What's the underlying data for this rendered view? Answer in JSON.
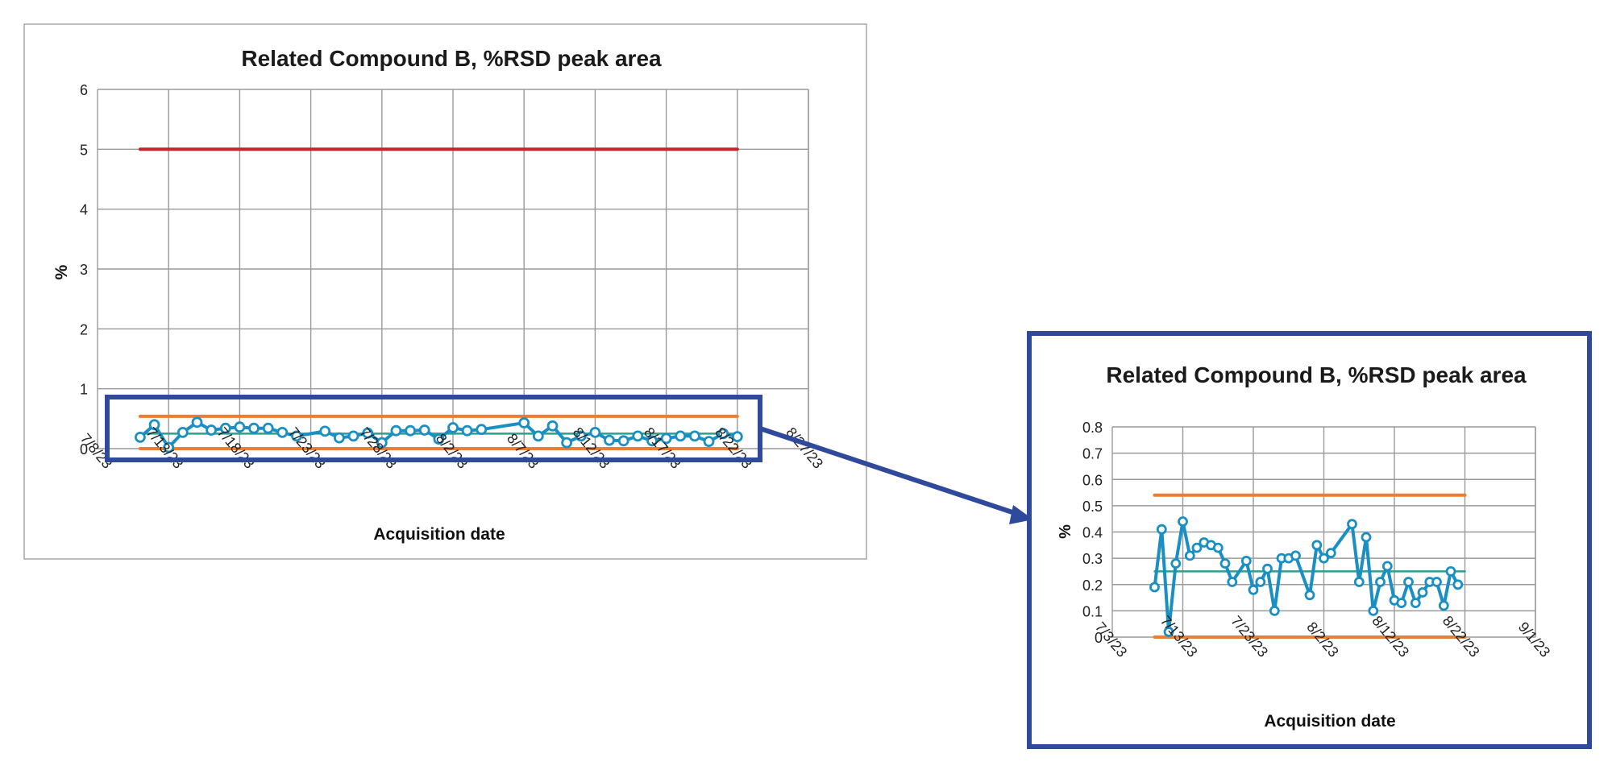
{
  "chart_data": [
    {
      "type": "line",
      "title": "Related Compound B, %RSD peak area",
      "xlabel": "Acquisition date",
      "ylabel": "%",
      "x_ticks": [
        "7/8/23",
        "7/13/23",
        "7/18/23",
        "7/23/23",
        "7/28/23",
        "8/2/23",
        "8/7/23",
        "8/12/23",
        "8/17/23",
        "8/22/23",
        "8/27/23"
      ],
      "xlim": [
        "7/8/23",
        "8/27/23"
      ],
      "ylim": [
        0,
        6
      ],
      "y_ticks": [
        "0",
        "1",
        "2",
        "3",
        "4",
        "5",
        "6"
      ],
      "grid": true,
      "series": [
        {
          "role": "limit",
          "color": "#c0272d",
          "x": [
            "7/11/23",
            "8/22/23"
          ],
          "y": [
            5,
            5
          ]
        },
        {
          "role": "upper control",
          "color": "#ed7d31",
          "x": [
            "7/11/23",
            "8/22/23"
          ],
          "y": [
            0.54,
            0.54
          ]
        },
        {
          "role": "lower control",
          "color": "#ed7d31",
          "x": [
            "7/11/23",
            "8/22/23"
          ],
          "y": [
            0,
            0
          ]
        },
        {
          "role": "mean",
          "color": "#2e9e8f",
          "x": [
            "7/11/23",
            "8/22/23"
          ],
          "y": [
            0.25,
            0.25
          ]
        },
        {
          "role": "data",
          "color": "#1a8fc4",
          "x": [
            "7/11/23",
            "7/12/23",
            "7/13/23",
            "7/14/23",
            "7/15/23",
            "7/16/23",
            "7/17/23",
            "7/18/23",
            "7/19/23",
            "7/20/23",
            "7/21/23",
            "7/22/23",
            "7/24/23",
            "7/25/23",
            "7/26/23",
            "7/27/23",
            "7/28/23",
            "7/29/23",
            "7/30/23",
            "7/31/23",
            "8/1/23",
            "8/2/23",
            "8/3/23",
            "8/4/23",
            "8/7/23",
            "8/8/23",
            "8/9/23",
            "8/10/23",
            "8/11/23",
            "8/12/23",
            "8/13/23",
            "8/14/23",
            "8/15/23",
            "8/16/23",
            "8/17/23",
            "8/18/23",
            "8/19/23",
            "8/20/23",
            "8/21/23",
            "8/22/23"
          ],
          "y": [
            0.19,
            0.4,
            0.02,
            0.27,
            0.44,
            0.31,
            0.34,
            0.36,
            0.34,
            0.34,
            0.27,
            0.21,
            0.29,
            0.18,
            0.21,
            0.26,
            0.1,
            0.3,
            0.3,
            0.31,
            0.16,
            0.35,
            0.3,
            0.32,
            0.43,
            0.21,
            0.38,
            0.1,
            0.21,
            0.27,
            0.14,
            0.13,
            0.21,
            0.13,
            0.17,
            0.21,
            0.21,
            0.12,
            0.25,
            0.2
          ]
        }
      ]
    },
    {
      "type": "line",
      "title": "Related Compound B, %RSD peak area",
      "xlabel": "Acquisition date",
      "ylabel": "%",
      "x_ticks": [
        "7/3/23",
        "7/13/23",
        "7/23/23",
        "8/2/23",
        "8/12/23",
        "8/22/23",
        "9/1/23"
      ],
      "xlim": [
        "7/3/23",
        "9/1/23"
      ],
      "ylim": [
        0,
        0.8
      ],
      "y_ticks": [
        "0",
        "0.1",
        "0.2",
        "0.3",
        "0.4",
        "0.5",
        "0.6",
        "0.7",
        "0.8"
      ],
      "grid": true,
      "series": [
        {
          "role": "upper control",
          "color": "#ed7d31",
          "x": [
            "7/9/23",
            "8/22/23"
          ],
          "y": [
            0.54,
            0.54
          ]
        },
        {
          "role": "lower control",
          "color": "#ed7d31",
          "x": [
            "7/9/23",
            "8/22/23"
          ],
          "y": [
            0,
            0
          ]
        },
        {
          "role": "mean",
          "color": "#2e9e8f",
          "x": [
            "7/9/23",
            "8/22/23"
          ],
          "y": [
            0.25,
            0.25
          ]
        },
        {
          "role": "data",
          "color": "#1a8fc4",
          "x": [
            "7/9/23",
            "7/10/23",
            "7/11/23",
            "7/12/23",
            "7/13/23",
            "7/14/23",
            "7/15/23",
            "7/16/23",
            "7/17/23",
            "7/18/23",
            "7/19/23",
            "7/20/23",
            "7/22/23",
            "7/23/23",
            "7/24/23",
            "7/25/23",
            "7/26/23",
            "7/27/23",
            "7/28/23",
            "7/29/23",
            "7/31/23",
            "8/1/23",
            "8/2/23",
            "8/3/23",
            "8/6/23",
            "8/7/23",
            "8/8/23",
            "8/9/23",
            "8/10/23",
            "8/11/23",
            "8/12/23",
            "8/13/23",
            "8/14/23",
            "8/15/23",
            "8/16/23",
            "8/17/23",
            "8/18/23",
            "8/19/23",
            "8/20/23",
            "8/21/23"
          ],
          "y": [
            0.19,
            0.41,
            0.02,
            0.28,
            0.44,
            0.31,
            0.34,
            0.36,
            0.35,
            0.34,
            0.28,
            0.21,
            0.29,
            0.18,
            0.21,
            0.26,
            0.1,
            0.3,
            0.3,
            0.31,
            0.16,
            0.35,
            0.3,
            0.32,
            0.43,
            0.21,
            0.38,
            0.1,
            0.21,
            0.27,
            0.14,
            0.13,
            0.21,
            0.13,
            0.17,
            0.21,
            0.21,
            0.12,
            0.25,
            0.2
          ]
        }
      ]
    }
  ],
  "colors": {
    "frame_outline": "#a6a6a6",
    "gridline": "#9a9a9a",
    "zoom_highlight": "#2f4a9a",
    "limit": "#c0272d",
    "control": "#ed7d31",
    "mean": "#2e9e8f",
    "data": "#1a8fc4"
  }
}
